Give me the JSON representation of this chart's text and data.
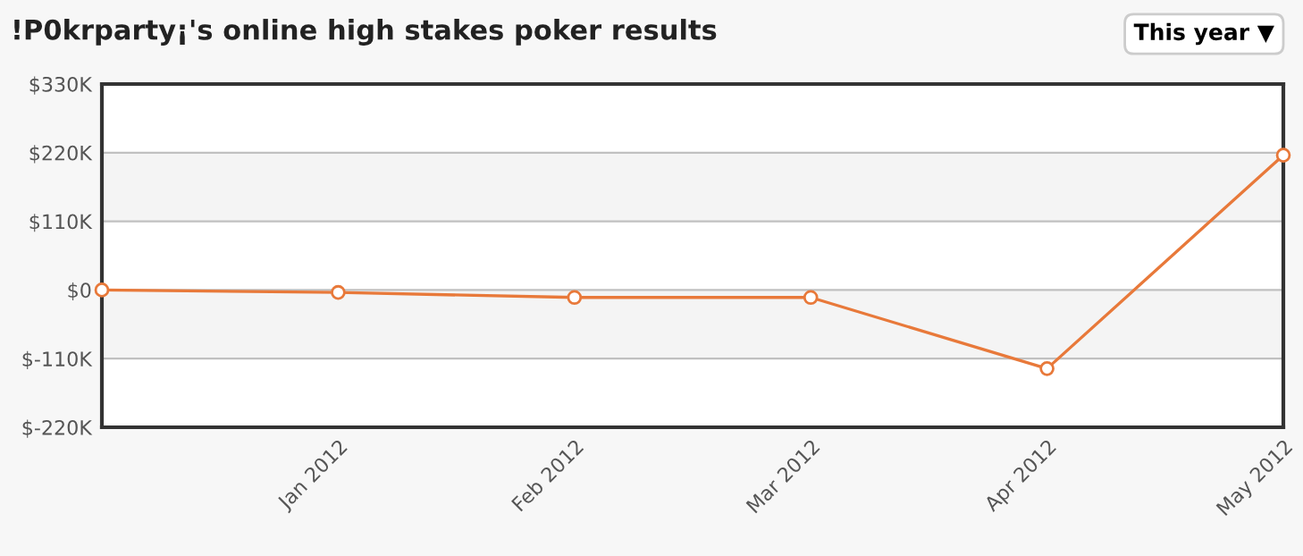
{
  "chart_data": {
    "type": "line",
    "title": "!P0krparty¡'s online high stakes poker results",
    "annotations": [
      "This year ▼"
    ],
    "categories": [
      null,
      "Jan 2012",
      "Feb 2012",
      "Mar 2012",
      "Apr 2012",
      "May 2012"
    ],
    "series": [
      {
        "color": "#e8793a",
        "values": [
          0,
          -4,
          -12,
          -12,
          -126,
          216
        ]
      }
    ],
    "ylim": [
      -220,
      330
    ],
    "yticks": [
      {
        "value": -220,
        "label": "$-220K"
      },
      {
        "value": -110,
        "label": "$-110K"
      },
      {
        "value": 0,
        "label": "$0"
      },
      {
        "value": 110,
        "label": "$110K"
      },
      {
        "value": 220,
        "label": "$220K"
      },
      {
        "value": 330,
        "label": "$330K"
      }
    ],
    "bands": [
      {
        "axis": "y",
        "from": 110,
        "to": 220,
        "color": "#f4f4f4"
      },
      {
        "axis": "y",
        "from": -110,
        "to": 0,
        "color": "#f4f4f4"
      }
    ],
    "grid": "y",
    "marker": "circle",
    "line_style": "solid",
    "legend": false
  }
}
